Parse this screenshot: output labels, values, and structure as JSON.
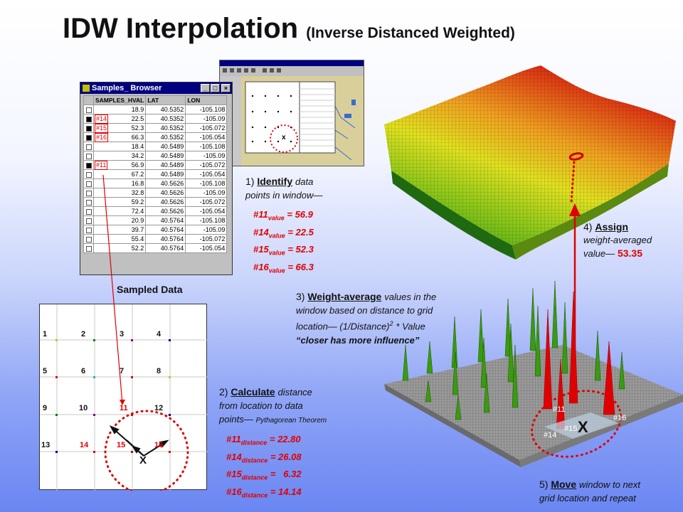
{
  "title": {
    "main": "IDW Interpolation",
    "sub": "(Inverse Distanced Weighted)"
  },
  "browser": {
    "title": "Samples_ Browser",
    "headers": [
      "SAMPLES_HVAL",
      "LAT",
      "LON"
    ],
    "rows": [
      {
        "tag": "",
        "checked": false,
        "v": "18.9",
        "lat": "40.5352",
        "lon": "-105.108"
      },
      {
        "tag": "#14",
        "checked": true,
        "v": "22.5",
        "lat": "40.5352",
        "lon": "-105.09"
      },
      {
        "tag": "#15",
        "checked": true,
        "v": "52.3",
        "lat": "40.5352",
        "lon": "-105.072"
      },
      {
        "tag": "#16",
        "checked": true,
        "v": "66.3",
        "lat": "40.5352",
        "lon": "-105.054"
      },
      {
        "tag": "",
        "checked": false,
        "v": "18.4",
        "lat": "40.5489",
        "lon": "-105.108"
      },
      {
        "tag": "",
        "checked": false,
        "v": "34.2",
        "lat": "40.5489",
        "lon": "-105.09"
      },
      {
        "tag": "#11",
        "checked": true,
        "v": "56.9",
        "lat": "40.5489",
        "lon": "-105.072"
      },
      {
        "tag": "",
        "checked": false,
        "v": "67.2",
        "lat": "40.5489",
        "lon": "-105.054"
      },
      {
        "tag": "",
        "checked": false,
        "v": "16.8",
        "lat": "40.5626",
        "lon": "-105.108"
      },
      {
        "tag": "",
        "checked": false,
        "v": "32.8",
        "lat": "40.5626",
        "lon": "-105.09"
      },
      {
        "tag": "",
        "checked": false,
        "v": "59.2",
        "lat": "40.5626",
        "lon": "-105.072"
      },
      {
        "tag": "",
        "checked": false,
        "v": "72.4",
        "lat": "40.5626",
        "lon": "-105.054"
      },
      {
        "tag": "",
        "checked": false,
        "v": "20.9",
        "lat": "40.5764",
        "lon": "-105.108"
      },
      {
        "tag": "",
        "checked": false,
        "v": "39.7",
        "lat": "40.5764",
        "lon": "-105.09"
      },
      {
        "tag": "",
        "checked": false,
        "v": "55.4",
        "lat": "40.5764",
        "lon": "-105.072"
      },
      {
        "tag": "",
        "checked": false,
        "v": "52.2",
        "lat": "40.5764",
        "lon": "-105.054"
      }
    ]
  },
  "sampled_label": "Sampled Data",
  "step1": {
    "head": "1)",
    "verb": "Identify",
    "rest": "data",
    "line2": "points in window—"
  },
  "values": [
    {
      "id": "#11",
      "sub": "value",
      "val": "= 56.9"
    },
    {
      "id": "#14",
      "sub": "value",
      "val": "= 22.5"
    },
    {
      "id": "#15",
      "sub": "value",
      "val": "= 52.3"
    },
    {
      "id": "#16",
      "sub": "value",
      "val": "= 66.3"
    }
  ],
  "step2": {
    "head": "2)",
    "verb": "Calculate",
    "rest": "distance",
    "line2": "from location to data",
    "line3a": "points—",
    "line3b": "Pythagorean Theorem"
  },
  "distances": [
    {
      "id": "#11",
      "sub": "distance",
      "val": "= 22.80"
    },
    {
      "id": "#14",
      "sub": "distance",
      "val": "= 26.08"
    },
    {
      "id": "#15",
      "sub": "distance",
      "val": "=   6.32"
    },
    {
      "id": "#16",
      "sub": "distance",
      "val": "= 14.14"
    }
  ],
  "step3": {
    "head": "3)",
    "verb": "Weight-average",
    "rest": "values in the",
    "line2": "window based on distance to grid",
    "line3": "location— (1/Distance)",
    "sup": "2",
    "line3b": "* Value",
    "line4": "“closer has more influence”"
  },
  "step4": {
    "head": "4)",
    "verb": "Assign",
    "line2": "weight-averaged",
    "line3": "value—",
    "val": "53.35"
  },
  "step5": {
    "head": "5)",
    "verb": "Move",
    "rest": "window to next",
    "line2": "grid location and repeat"
  },
  "grid_numbers": [
    "1",
    "2",
    "3",
    "4",
    "5",
    "6",
    "7",
    "8",
    "9",
    "10",
    "11",
    "12",
    "13",
    "14",
    "15",
    "16"
  ],
  "grid_marker": "X",
  "spike_labels": [
    "#11",
    "#15",
    "#14",
    "#16"
  ],
  "spike_marker": "X",
  "shot_marker": "x",
  "colors": {
    "accent_red": "#e00000",
    "title_bar": "#000080"
  }
}
